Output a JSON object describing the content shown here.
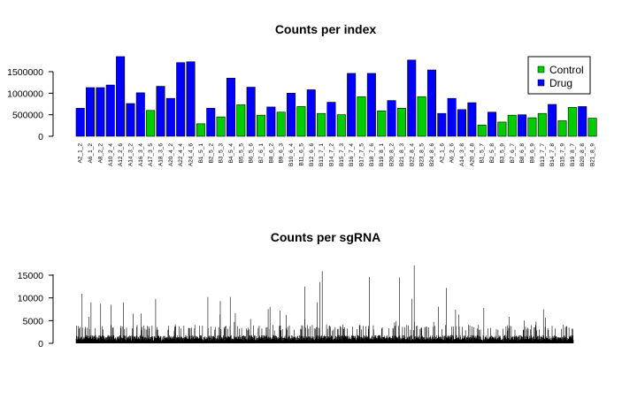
{
  "chart_data": [
    {
      "type": "bar",
      "title": "Counts per index",
      "xlabel": "",
      "ylabel": "",
      "ylim": [
        0,
        1900000
      ],
      "y_ticks": [
        "0",
        "500000",
        "1000000",
        "1500000"
      ],
      "y_tick_values": [
        0,
        500000,
        1000000,
        1500000
      ],
      "categories": [
        "A2_1_2",
        "A6_1_2",
        "A8_2_2",
        "A10_2_4",
        "A12_2_6",
        "A14_3_2",
        "A16_3_4",
        "A17_3_5",
        "A18_3_6",
        "A20_4_2",
        "A22_4_4",
        "A24_4_6",
        "B1_5_1",
        "B2_5_2",
        "B3_5_3",
        "B4_5_4",
        "B5_5_5",
        "B6_5_6",
        "B7_6_1",
        "B8_6_2",
        "B9_6_3",
        "B10_6_4",
        "B11_6_5",
        "B12_6_6",
        "B13_7_1",
        "B14_7_2",
        "B15_7_3",
        "B16_7_4",
        "B17_7_5",
        "B18_7_6",
        "B19_8_1",
        "B20_8_2",
        "B21_8_3",
        "B22_8_4",
        "B23_8_5",
        "B24_8_6",
        "A2_1_6",
        "A6_2_6",
        "A14_3_8",
        "A20_4_8",
        "B1_5_7",
        "B2_5_8",
        "B3_5_9",
        "B7_6_7",
        "B8_6_8",
        "B9_6_9",
        "B13_7_7",
        "B14_7_8",
        "B15_7_9",
        "B19_8_7",
        "B20_8_8",
        "B21_8_9"
      ],
      "values": [
        650000,
        1130000,
        1130000,
        1190000,
        1850000,
        760000,
        1010000,
        600000,
        1160000,
        880000,
        1710000,
        1730000,
        290000,
        650000,
        450000,
        1350000,
        730000,
        1140000,
        490000,
        680000,
        560000,
        1000000,
        690000,
        1080000,
        530000,
        790000,
        500000,
        1460000,
        920000,
        1460000,
        590000,
        830000,
        650000,
        1770000,
        920000,
        1540000,
        530000,
        880000,
        620000,
        780000,
        260000,
        560000,
        330000,
        490000,
        500000,
        430000,
        530000,
        740000,
        360000,
        670000,
        690000,
        420000
      ],
      "groups": [
        "Drug",
        "Drug",
        "Drug",
        "Drug",
        "Drug",
        "Drug",
        "Drug",
        "Control",
        "Drug",
        "Drug",
        "Drug",
        "Drug",
        "Control",
        "Drug",
        "Control",
        "Drug",
        "Control",
        "Drug",
        "Control",
        "Drug",
        "Control",
        "Drug",
        "Control",
        "Drug",
        "Control",
        "Drug",
        "Control",
        "Drug",
        "Control",
        "Drug",
        "Control",
        "Drug",
        "Control",
        "Drug",
        "Control",
        "Drug",
        "Drug",
        "Drug",
        "Drug",
        "Drug",
        "Control",
        "Drug",
        "Control",
        "Control",
        "Drug",
        "Control",
        "Control",
        "Drug",
        "Control",
        "Control",
        "Drug",
        "Control"
      ],
      "legend": {
        "position": "top-right",
        "entries": [
          {
            "name": "Control",
            "color": "#00CD00"
          },
          {
            "name": "Drug",
            "color": "#0000FF"
          }
        ]
      },
      "grid": false
    },
    {
      "type": "bar",
      "title": "Counts per sgRNA",
      "xlabel": "",
      "ylabel": "",
      "ylim": [
        0,
        17500
      ],
      "y_ticks": [
        "0",
        "5000",
        "10000",
        "15000"
      ],
      "y_tick_values": [
        0,
        5000,
        10000,
        15000
      ],
      "bar_color": "#000000",
      "approx_bar_count": 1500,
      "baseline_level": 1500,
      "peaks": [
        {
          "position": 0.012,
          "value": 10900
        },
        {
          "position": 0.03,
          "value": 9000
        },
        {
          "position": 0.07,
          "value": 8500
        },
        {
          "position": 0.095,
          "value": 9000
        },
        {
          "position": 0.115,
          "value": 6500
        },
        {
          "position": 0.16,
          "value": 9800
        },
        {
          "position": 0.265,
          "value": 10200
        },
        {
          "position": 0.29,
          "value": 9300
        },
        {
          "position": 0.31,
          "value": 10200
        },
        {
          "position": 0.39,
          "value": 8000
        },
        {
          "position": 0.41,
          "value": 7200
        },
        {
          "position": 0.46,
          "value": 12500
        },
        {
          "position": 0.485,
          "value": 9000
        },
        {
          "position": 0.495,
          "value": 15900
        },
        {
          "position": 0.49,
          "value": 13500
        },
        {
          "position": 0.59,
          "value": 14600
        },
        {
          "position": 0.65,
          "value": 14500
        },
        {
          "position": 0.675,
          "value": 9800
        },
        {
          "position": 0.68,
          "value": 17200
        },
        {
          "position": 0.745,
          "value": 12200
        },
        {
          "position": 0.82,
          "value": 7800
        },
        {
          "position": 0.925,
          "value": 4800
        }
      ],
      "grid": false
    }
  ]
}
